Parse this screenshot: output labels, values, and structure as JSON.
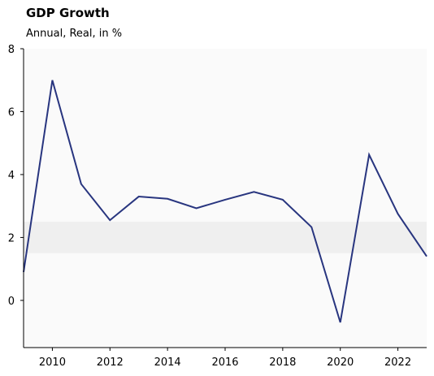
{
  "chart_data": {
    "type": "line",
    "title": "GDP Growth",
    "subtitle": "Annual, Real, in %",
    "xlabel": "",
    "ylabel": "",
    "xlim": [
      2009,
      2023
    ],
    "ylim": [
      -1.5,
      8
    ],
    "x_ticks": [
      2010,
      2012,
      2014,
      2016,
      2018,
      2020,
      2022
    ],
    "y_ticks": [
      0,
      2,
      4,
      6,
      8
    ],
    "grid": false,
    "legend": "none",
    "target_band": [
      1.5,
      2.5
    ],
    "colors": {
      "line": "#28357f",
      "plot_background": "#fafafa",
      "band": "#efefef"
    },
    "series": [
      {
        "x": [
          2009,
          2010,
          2011,
          2012,
          2013,
          2014,
          2015,
          2016,
          2017,
          2018,
          2019,
          2020,
          2021,
          2022,
          2023
        ],
        "values": [
          0.9,
          7.0,
          3.7,
          2.55,
          3.3,
          3.23,
          2.93,
          3.2,
          3.45,
          3.2,
          2.33,
          -0.7,
          4.63,
          2.75,
          1.4
        ]
      }
    ]
  }
}
